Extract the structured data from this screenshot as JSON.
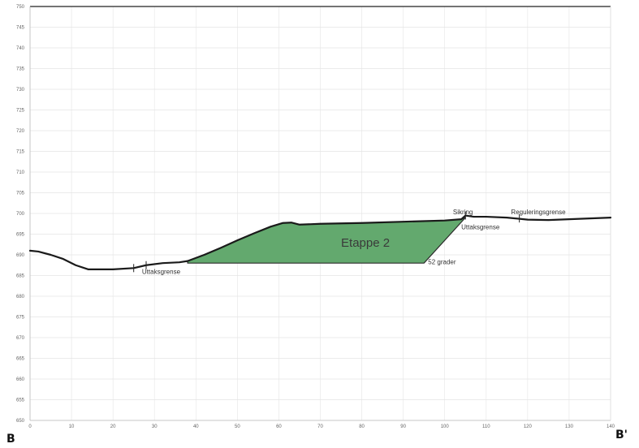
{
  "chart_data": {
    "type": "area",
    "title": "",
    "xlabel": "",
    "ylabel": "",
    "xlim": [
      0,
      140
    ],
    "ylim": [
      650,
      750
    ],
    "grid": true,
    "x_ticks": [
      "0",
      "10",
      "20",
      "30",
      "40",
      "50",
      "60",
      "70",
      "80",
      "90",
      "100",
      "110",
      "120",
      "130",
      "140"
    ],
    "y_ticks": [
      "650",
      "655",
      "660",
      "665",
      "670",
      "675",
      "680",
      "685",
      "690",
      "695",
      "700",
      "705",
      "710",
      "715",
      "720",
      "725",
      "730",
      "735",
      "740",
      "745",
      "750"
    ],
    "terrain": {
      "x": [
        0,
        2,
        5,
        8,
        11,
        14,
        20,
        25,
        28,
        32,
        36,
        38,
        42,
        46,
        50,
        54,
        58,
        61,
        63,
        65,
        70,
        80,
        90,
        100,
        104,
        105,
        107,
        110,
        115,
        120,
        125,
        130,
        135,
        140
      ],
      "y": [
        691,
        690.8,
        690,
        689,
        687.5,
        686.5,
        686.5,
        686.8,
        687.5,
        688,
        688.2,
        688.5,
        690,
        691.7,
        693.5,
        695.2,
        696.8,
        697.7,
        697.8,
        697.3,
        697.5,
        697.7,
        698,
        698.3,
        698.6,
        699.5,
        699.2,
        699.2,
        699,
        698.5,
        698.4,
        698.6,
        698.8,
        699
      ]
    },
    "series": [
      {
        "name": "Etappe 2",
        "color": "#63a96e",
        "x": [
          38,
          42,
          46,
          50,
          54,
          58,
          61,
          63,
          65,
          70,
          80,
          90,
          100,
          104,
          105,
          95,
          38
        ],
        "y": [
          688.5,
          690,
          691.7,
          693.5,
          695.2,
          696.8,
          697.7,
          697.8,
          697.3,
          697.5,
          697.7,
          698,
          698.3,
          698.6,
          699,
          688,
          688
        ]
      }
    ],
    "annotations": [
      {
        "text": "Etappe 2",
        "x": 75,
        "y": 692
      },
      {
        "text": "Sikring",
        "x": 102,
        "y": 699.8
      },
      {
        "text": "Reguleringsgrense",
        "x": 116,
        "y": 699.8
      },
      {
        "text": "Uttaksgrense",
        "x": 104,
        "y": 696.2
      },
      {
        "text": "52 grader",
        "x": 96,
        "y": 687.7
      },
      {
        "text": "Uttaksgrense",
        "x": 27,
        "y": 685.4
      }
    ],
    "markers": [
      {
        "x": 25,
        "y": 686.8
      },
      {
        "x": 28,
        "y": 687.5
      },
      {
        "x": 105,
        "y": 699.5
      },
      {
        "x": 118,
        "y": 698.8
      }
    ],
    "end_labels": {
      "left": "B",
      "right": "B'"
    },
    "colors": {
      "fill": "#63a96e",
      "line": "#1a1a1a",
      "grid": "#e4e4e4"
    }
  }
}
